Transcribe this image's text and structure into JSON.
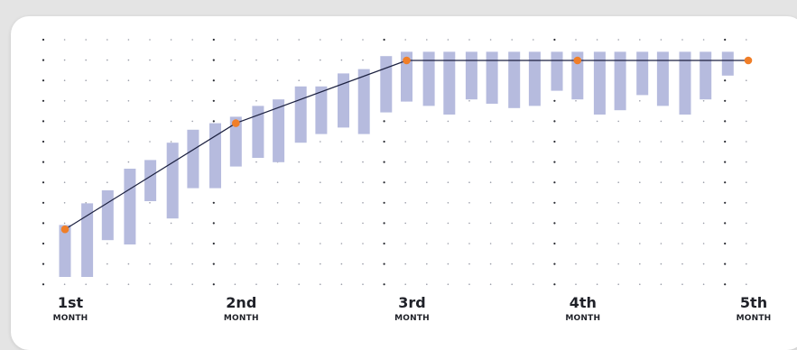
{
  "chart_data": {
    "type": "candlestick-line",
    "x_ticks": [
      {
        "big": "1st",
        "small": "MONTH"
      },
      {
        "big": "2nd",
        "small": "MONTH"
      },
      {
        "big": "3rd",
        "small": "MONTH"
      },
      {
        "big": "4th",
        "small": "MONTH"
      },
      {
        "big": "5th",
        "small": "MONTH"
      }
    ],
    "y_range": [
      0,
      100
    ],
    "grid": "dotted",
    "bars": [
      {
        "x": 0.0,
        "low": 0,
        "high": 24
      },
      {
        "x": 0.13,
        "low": 0,
        "high": 34
      },
      {
        "x": 0.25,
        "low": 17,
        "high": 40
      },
      {
        "x": 0.38,
        "low": 15,
        "high": 50
      },
      {
        "x": 0.5,
        "low": 35,
        "high": 54
      },
      {
        "x": 0.63,
        "low": 27,
        "high": 62
      },
      {
        "x": 0.75,
        "low": 41,
        "high": 68
      },
      {
        "x": 0.88,
        "low": 41,
        "high": 71
      },
      {
        "x": 1.0,
        "low": 51,
        "high": 74
      },
      {
        "x": 1.13,
        "low": 55,
        "high": 79
      },
      {
        "x": 1.25,
        "low": 53,
        "high": 82
      },
      {
        "x": 1.38,
        "low": 62,
        "high": 88
      },
      {
        "x": 1.5,
        "low": 66,
        "high": 88
      },
      {
        "x": 1.63,
        "low": 69,
        "high": 94
      },
      {
        "x": 1.75,
        "low": 66,
        "high": 96
      },
      {
        "x": 1.88,
        "low": 76,
        "high": 102
      },
      {
        "x": 2.0,
        "low": 81,
        "high": 104
      },
      {
        "x": 2.13,
        "low": 79,
        "high": 104
      },
      {
        "x": 2.25,
        "low": 75,
        "high": 104
      },
      {
        "x": 2.38,
        "low": 82,
        "high": 104
      },
      {
        "x": 2.5,
        "low": 80,
        "high": 104
      },
      {
        "x": 2.63,
        "low": 78,
        "high": 104
      },
      {
        "x": 2.75,
        "low": 79,
        "high": 104
      },
      {
        "x": 2.88,
        "low": 86,
        "high": 104
      },
      {
        "x": 3.0,
        "low": 82,
        "high": 104
      },
      {
        "x": 3.13,
        "low": 75,
        "high": 104
      },
      {
        "x": 3.25,
        "low": 77,
        "high": 104
      },
      {
        "x": 3.38,
        "low": 84,
        "high": 104
      },
      {
        "x": 3.5,
        "low": 79,
        "high": 104
      },
      {
        "x": 3.63,
        "low": 75,
        "high": 104
      },
      {
        "x": 3.75,
        "low": 82,
        "high": 104
      },
      {
        "x": 3.88,
        "low": 93,
        "high": 104
      }
    ],
    "line": [
      {
        "x": 0,
        "y": 22
      },
      {
        "x": 1,
        "y": 71
      },
      {
        "x": 2,
        "y": 100
      },
      {
        "x": 3,
        "y": 100
      },
      {
        "x": 4,
        "y": 100
      }
    ],
    "colors": {
      "bar": "#b6bbde",
      "line": "#1c2140",
      "point": "#f07e28",
      "grid_dot": "#9a9da8",
      "grid_dot_major": "#2a2c33"
    }
  }
}
